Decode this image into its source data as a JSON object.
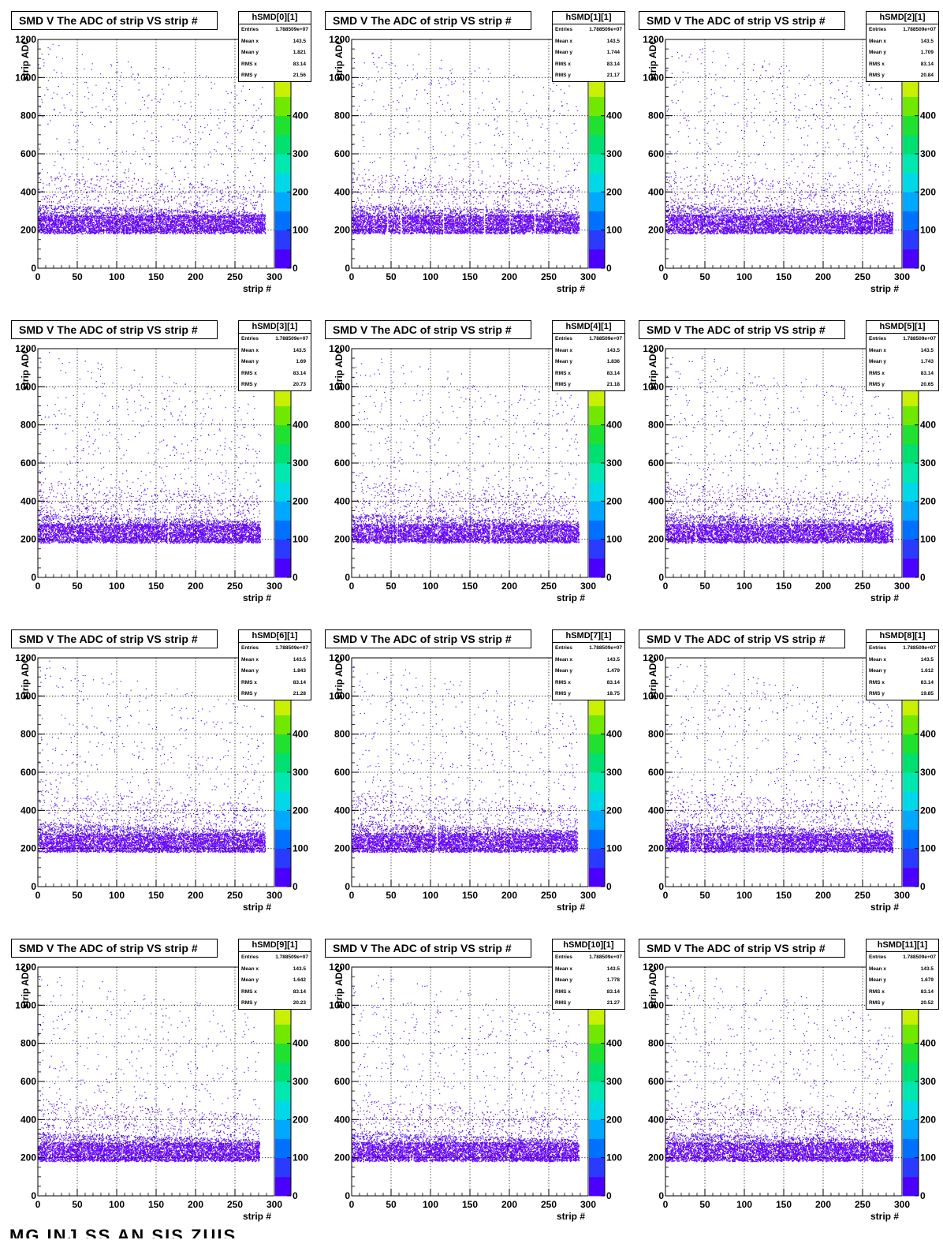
{
  "canvas": {
    "footer_text": "MG INJ SS AN SIS ZUIS"
  },
  "panel_title": "SMD V The ADC of strip VS strip #",
  "stat_labels": {
    "entries": "Entries",
    "mean_x": "Mean x",
    "mean_y": "Mean y",
    "rms_x": "RMS x",
    "rms_y": "RMS y"
  },
  "palette_colors": [
    "#4b00ff",
    "#2a3bff",
    "#0070ff",
    "#00a8ff",
    "#00d8e8",
    "#00e8b0",
    "#00e070",
    "#20e030",
    "#70e800",
    "#c8f000",
    "#f8e800",
    "#ffd800"
  ],
  "marker_color": "#5a12e8",
  "chart_data": [
    {
      "type": "heatmap",
      "title": "SMD V The ADC of strip VS strip #",
      "histname": "hSMD[0][1]",
      "xlabel": "strip #",
      "ylabel": "strip ADC",
      "xlim": [
        0,
        300
      ],
      "ylim": [
        0,
        1200
      ],
      "x_ticks": [
        "0",
        "50",
        "100",
        "150",
        "200",
        "250",
        "300"
      ],
      "y_ticks": [
        "0",
        "200",
        "400",
        "600",
        "800",
        "1000",
        "1200"
      ],
      "z_ticks": [
        "0",
        "100",
        "200",
        "300",
        "400",
        "500"
      ],
      "z_range": [
        0,
        500
      ],
      "grid": true,
      "stats": {
        "entries": "1.788509e+07",
        "mean_x": "143.5",
        "mean_y": "1.821",
        "rms_x": "83.14",
        "rms_y": "21.56"
      },
      "strip_max": 288,
      "pedestal_adc": 200,
      "dead_strips": []
    },
    {
      "type": "heatmap",
      "title": "SMD V The ADC of strip VS strip #",
      "histname": "hSMD[1][1]",
      "xlabel": "strip #",
      "ylabel": "strip ADC",
      "xlim": [
        0,
        300
      ],
      "ylim": [
        0,
        1200
      ],
      "x_ticks": [
        "0",
        "50",
        "100",
        "150",
        "200",
        "250",
        "300"
      ],
      "y_ticks": [
        "0",
        "200",
        "400",
        "600",
        "800",
        "1000",
        "1200"
      ],
      "z_ticks": [
        "0",
        "100",
        "200",
        "300",
        "400",
        "500"
      ],
      "z_range": [
        0,
        500
      ],
      "grid": true,
      "stats": {
        "entries": "1.788509e+07",
        "mean_x": "143.5",
        "mean_y": "1.744",
        "rms_x": "83.14",
        "rms_y": "21.17"
      },
      "strip_max": 288,
      "pedestal_adc": 200,
      "dead_strips": [
        45,
        62,
        116,
        168,
        200,
        232
      ]
    },
    {
      "type": "heatmap",
      "title": "SMD V The ADC of strip VS strip #",
      "histname": "hSMD[2][1]",
      "xlabel": "strip #",
      "ylabel": "strip ADC",
      "xlim": [
        0,
        300
      ],
      "ylim": [
        0,
        1200
      ],
      "x_ticks": [
        "0",
        "50",
        "100",
        "150",
        "200",
        "250",
        "300"
      ],
      "y_ticks": [
        "0",
        "200",
        "400",
        "600",
        "800",
        "1000",
        "1200"
      ],
      "z_ticks": [
        "0",
        "100",
        "200",
        "300",
        "400",
        "500"
      ],
      "z_range": [
        0,
        500
      ],
      "grid": true,
      "stats": {
        "entries": "1.788509e+07",
        "mean_x": "143.5",
        "mean_y": "1.709",
        "rms_x": "83.14",
        "rms_y": "20.84"
      },
      "strip_max": 288,
      "pedestal_adc": 200,
      "dead_strips": [
        263
      ]
    },
    {
      "type": "heatmap",
      "title": "SMD V The ADC of strip VS strip #",
      "histname": "hSMD[3][1]",
      "xlabel": "strip #",
      "ylabel": "strip ADC",
      "xlim": [
        0,
        300
      ],
      "ylim": [
        0,
        1200
      ],
      "x_ticks": [
        "0",
        "50",
        "100",
        "150",
        "200",
        "250",
        "300"
      ],
      "y_ticks": [
        "0",
        "200",
        "400",
        "600",
        "800",
        "1000",
        "1200"
      ],
      "z_ticks": [
        "0",
        "100",
        "200",
        "300",
        "400",
        "500"
      ],
      "z_range": [
        0,
        500
      ],
      "grid": true,
      "stats": {
        "entries": "1.788509e+07",
        "mean_x": "143.5",
        "mean_y": "1.69",
        "rms_x": "83.14",
        "rms_y": "20.73"
      },
      "strip_max": 282,
      "pedestal_adc": 200,
      "dead_strips": [
        165
      ]
    },
    {
      "type": "heatmap",
      "title": "SMD V The ADC of strip VS strip #",
      "histname": "hSMD[4][1]",
      "xlabel": "strip #",
      "ylabel": "strip ADC",
      "xlim": [
        0,
        300
      ],
      "ylim": [
        0,
        1200
      ],
      "x_ticks": [
        "0",
        "50",
        "100",
        "150",
        "200",
        "250",
        "300"
      ],
      "y_ticks": [
        "0",
        "200",
        "400",
        "600",
        "800",
        "1000",
        "1200"
      ],
      "z_ticks": [
        "0",
        "100",
        "200",
        "300",
        "400",
        "500"
      ],
      "z_range": [
        0,
        500
      ],
      "grid": true,
      "stats": {
        "entries": "1.788509e+07",
        "mean_x": "143.5",
        "mean_y": "1.836",
        "rms_x": "83.14",
        "rms_y": "21.18"
      },
      "strip_max": 288,
      "pedestal_adc": 200,
      "dead_strips": [
        57,
        176
      ]
    },
    {
      "type": "heatmap",
      "title": "SMD V The ADC of strip VS strip #",
      "histname": "hSMD[5][1]",
      "xlabel": "strip #",
      "ylabel": "strip ADC",
      "xlim": [
        0,
        300
      ],
      "ylim": [
        0,
        1200
      ],
      "x_ticks": [
        "0",
        "50",
        "100",
        "150",
        "200",
        "250",
        "300"
      ],
      "y_ticks": [
        "0",
        "200",
        "400",
        "600",
        "800",
        "1000",
        "1200"
      ],
      "z_ticks": [
        "0",
        "100",
        "200",
        "300",
        "400",
        "500"
      ],
      "z_range": [
        0,
        500
      ],
      "grid": true,
      "stats": {
        "entries": "1.788509e+07",
        "mean_x": "143.5",
        "mean_y": "1.743",
        "rms_x": "83.14",
        "rms_y": "20.65"
      },
      "strip_max": 288,
      "pedestal_adc": 200,
      "dead_strips": [
        38
      ]
    },
    {
      "type": "heatmap",
      "title": "SMD V The ADC of strip VS strip #",
      "histname": "hSMD[6][1]",
      "xlabel": "strip #",
      "ylabel": "strip ADC",
      "xlim": [
        0,
        300
      ],
      "ylim": [
        0,
        1200
      ],
      "x_ticks": [
        "0",
        "50",
        "100",
        "150",
        "200",
        "250",
        "300"
      ],
      "y_ticks": [
        "0",
        "200",
        "400",
        "600",
        "800",
        "1000",
        "1200"
      ],
      "z_ticks": [
        "0",
        "100",
        "200",
        "300",
        "400",
        "500"
      ],
      "z_range": [
        0,
        500
      ],
      "grid": true,
      "stats": {
        "entries": "1.788509e+07",
        "mean_x": "143.5",
        "mean_y": "1.843",
        "rms_x": "83.14",
        "rms_y": "21.28"
      },
      "strip_max": 288,
      "pedestal_adc": 200,
      "dead_strips": []
    },
    {
      "type": "heatmap",
      "title": "SMD V The ADC of strip VS strip #",
      "histname": "hSMD[7][1]",
      "xlabel": "strip #",
      "ylabel": "strip ADC",
      "xlim": [
        0,
        300
      ],
      "ylim": [
        0,
        1200
      ],
      "x_ticks": [
        "0",
        "50",
        "100",
        "150",
        "200",
        "250",
        "300"
      ],
      "y_ticks": [
        "0",
        "200",
        "400",
        "600",
        "800",
        "1000",
        "1200"
      ],
      "z_ticks": [
        "0",
        "100",
        "200",
        "300",
        "400",
        "500"
      ],
      "z_range": [
        0,
        500
      ],
      "grid": true,
      "stats": {
        "entries": "1.788509e+07",
        "mean_x": "143.5",
        "mean_y": "1.479",
        "rms_x": "83.14",
        "rms_y": "18.75"
      },
      "strip_max": 286,
      "pedestal_adc": 200,
      "dead_strips": [
        108
      ]
    },
    {
      "type": "heatmap",
      "title": "SMD V The ADC of strip VS strip #",
      "histname": "hSMD[8][1]",
      "xlabel": "strip #",
      "ylabel": "strip ADC",
      "xlim": [
        0,
        300
      ],
      "ylim": [
        0,
        1200
      ],
      "x_ticks": [
        "0",
        "50",
        "100",
        "150",
        "200",
        "250",
        "300"
      ],
      "y_ticks": [
        "0",
        "200",
        "400",
        "600",
        "800",
        "1000",
        "1200"
      ],
      "z_ticks": [
        "0",
        "100",
        "200",
        "300",
        "400",
        "500"
      ],
      "z_range": [
        0,
        500
      ],
      "grid": true,
      "stats": {
        "entries": "1.788509e+07",
        "mean_x": "143.5",
        "mean_y": "1.612",
        "rms_x": "83.14",
        "rms_y": "19.85"
      },
      "strip_max": 288,
      "pedestal_adc": 200,
      "dead_strips": [
        30,
        47,
        113
      ]
    },
    {
      "type": "heatmap",
      "title": "SMD V The ADC of strip VS strip #",
      "histname": "hSMD[9][1]",
      "xlabel": "strip #",
      "ylabel": "strip ADC",
      "xlim": [
        0,
        300
      ],
      "ylim": [
        0,
        1200
      ],
      "x_ticks": [
        "0",
        "50",
        "100",
        "150",
        "200",
        "250",
        "300"
      ],
      "y_ticks": [
        "0",
        "200",
        "400",
        "600",
        "800",
        "1000",
        "1200"
      ],
      "z_ticks": [
        "0",
        "100",
        "200",
        "300",
        "400",
        "500"
      ],
      "z_range": [
        0,
        500
      ],
      "grid": true,
      "stats": {
        "entries": "1.788509e+07",
        "mean_x": "143.5",
        "mean_y": "1.642",
        "rms_x": "83.14",
        "rms_y": "20.23"
      },
      "strip_max": 281,
      "pedestal_adc": 200,
      "dead_strips": []
    },
    {
      "type": "heatmap",
      "title": "SMD V The ADC of strip VS strip #",
      "histname": "hSMD[10][1]",
      "xlabel": "strip #",
      "ylabel": "strip ADC",
      "xlim": [
        0,
        300
      ],
      "ylim": [
        0,
        1200
      ],
      "x_ticks": [
        "0",
        "50",
        "100",
        "150",
        "200",
        "250",
        "300"
      ],
      "y_ticks": [
        "0",
        "200",
        "400",
        "600",
        "800",
        "1000",
        "1200"
      ],
      "z_ticks": [
        "0",
        "100",
        "200",
        "300",
        "400",
        "500"
      ],
      "z_range": [
        0,
        500
      ],
      "grid": true,
      "stats": {
        "entries": "1.788509e+07",
        "mean_x": "143.5",
        "mean_y": "1.778",
        "rms_x": "83.14",
        "rms_y": "21.27"
      },
      "strip_max": 288,
      "pedestal_adc": 200,
      "dead_strips": []
    },
    {
      "type": "heatmap",
      "title": "SMD V The ADC of strip VS strip #",
      "histname": "hSMD[11][1]",
      "xlabel": "strip #",
      "ylabel": "strip ADC",
      "xlim": [
        0,
        300
      ],
      "ylim": [
        0,
        1200
      ],
      "x_ticks": [
        "0",
        "50",
        "100",
        "150",
        "200",
        "250",
        "300"
      ],
      "y_ticks": [
        "0",
        "200",
        "400",
        "600",
        "800",
        "1000",
        "1200"
      ],
      "z_ticks": [
        "0",
        "100",
        "200",
        "300",
        "400",
        "500"
      ],
      "z_range": [
        0,
        500
      ],
      "grid": true,
      "stats": {
        "entries": "1.788509e+07",
        "mean_x": "143.5",
        "mean_y": "1.679",
        "rms_x": "83.14",
        "rms_y": "20.52"
      },
      "strip_max": 288,
      "pedestal_adc": 200,
      "dead_strips": []
    }
  ]
}
